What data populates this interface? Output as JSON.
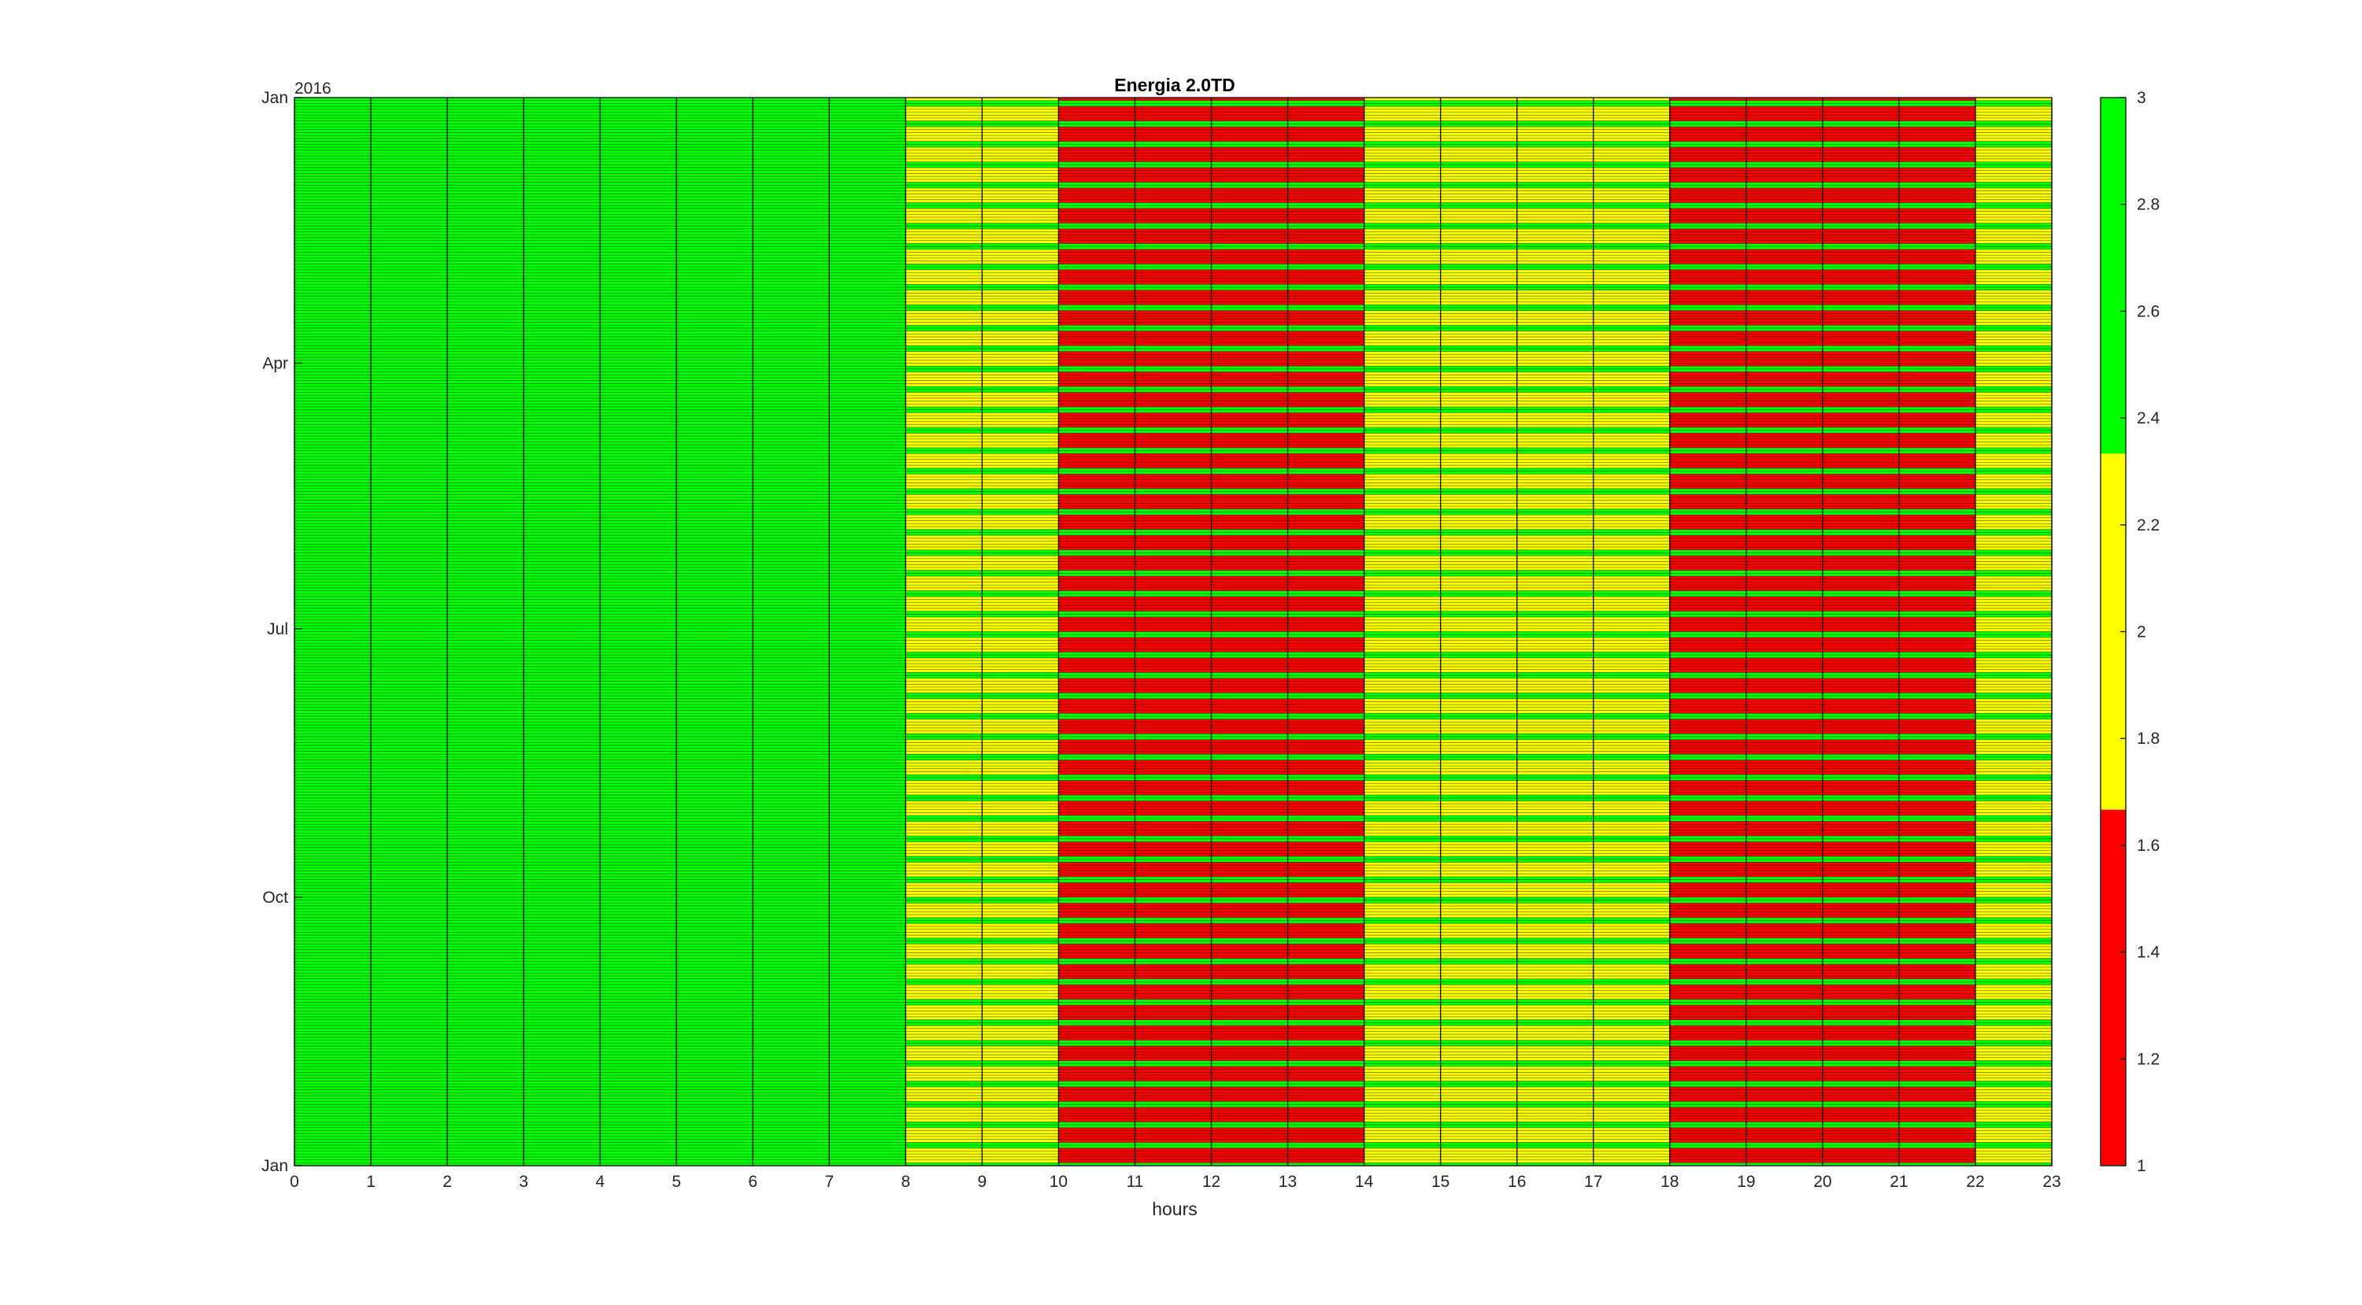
{
  "chart_data": {
    "type": "heatmap",
    "title": "Energia 2.0TD",
    "xlabel": "hours",
    "ylabel": "",
    "x_ticks": [
      "0",
      "1",
      "2",
      "3",
      "4",
      "5",
      "6",
      "7",
      "8",
      "9",
      "10",
      "11",
      "12",
      "13",
      "14",
      "15",
      "16",
      "17",
      "18",
      "19",
      "20",
      "21",
      "22",
      "23"
    ],
    "xlim": [
      0,
      23
    ],
    "y_year_label": "2016",
    "y_ticks": [
      "Jan",
      "Apr",
      "Jul",
      "Oct",
      "Jan"
    ],
    "y_tick_day_index": [
      0,
      91,
      182,
      274,
      366
    ],
    "days": 366,
    "first_day_weekday": "Friday",
    "hourly_period_weekday": [
      3,
      3,
      3,
      3,
      3,
      3,
      3,
      3,
      2,
      2,
      1,
      1,
      1,
      1,
      2,
      2,
      2,
      2,
      1,
      1,
      1,
      1,
      2
    ],
    "hourly_period_weekend": [
      3,
      3,
      3,
      3,
      3,
      3,
      3,
      3,
      3,
      3,
      3,
      3,
      3,
      3,
      3,
      3,
      3,
      3,
      3,
      3,
      3,
      3,
      3
    ],
    "colorbar": {
      "min": 1,
      "max": 3,
      "ticks": [
        "1",
        "1.2",
        "1.4",
        "1.6",
        "1.8",
        "2",
        "2.2",
        "2.4",
        "2.6",
        "2.8",
        "3"
      ],
      "bands": [
        {
          "from": 1,
          "to": 1.6667,
          "color": "#ff0000"
        },
        {
          "from": 1.6667,
          "to": 2.3333,
          "color": "#ffff00"
        },
        {
          "from": 2.3333,
          "to": 3,
          "color": "#00ff00"
        }
      ]
    },
    "colors": {
      "period_1": "#ff0000",
      "period_2": "#ffff00",
      "period_3": "#00ff00",
      "cell_edge": "#000000"
    }
  }
}
